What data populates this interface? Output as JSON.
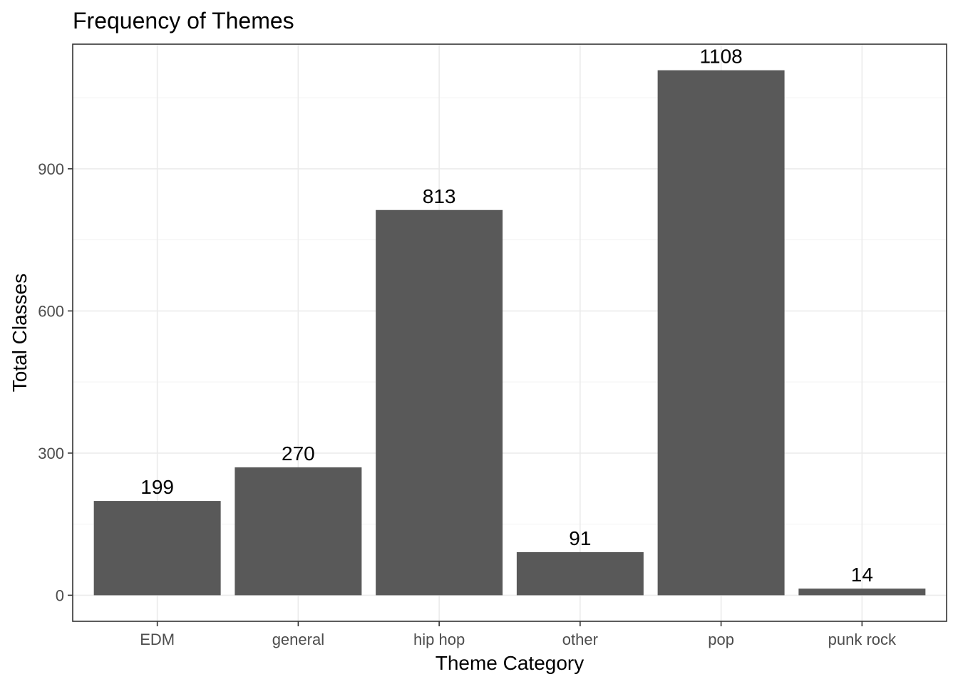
{
  "chart_data": {
    "type": "bar",
    "title": "Frequency of Themes",
    "xlabel": "Theme Category",
    "ylabel": "Total Classes",
    "categories": [
      "EDM",
      "general",
      "hip hop",
      "other",
      "pop",
      "punk rock"
    ],
    "values": [
      199,
      270,
      813,
      91,
      1108,
      14
    ],
    "data_labels": [
      "199",
      "270",
      "813",
      "91",
      "1108",
      "14"
    ],
    "ylim": [
      -55,
      1163
    ],
    "yticks": [
      0,
      300,
      600,
      900
    ],
    "ytick_labels": [
      "0",
      "300",
      "600",
      "900"
    ],
    "grid": true,
    "legend": "none",
    "colors": {
      "bar": "#595959",
      "grid": "#ebebeb",
      "border": "#333333",
      "tick_label": "#4d4d4d",
      "text": "#000000"
    }
  }
}
